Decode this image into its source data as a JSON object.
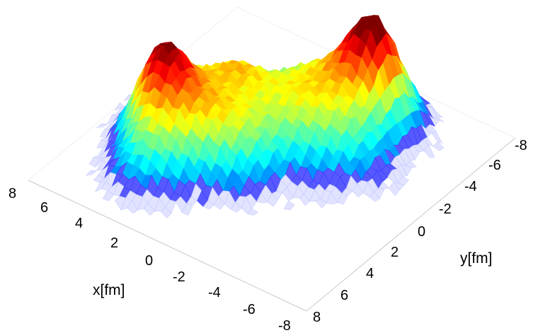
{
  "chart_data": {
    "type": "surface3d",
    "title": "",
    "xlabel": "x[fm]",
    "ylabel": "y[fm]",
    "zlabel": "",
    "x_ticks": [
      "8",
      "6",
      "4",
      "2",
      "0",
      "-2",
      "-4",
      "-6",
      "-8"
    ],
    "y_ticks": [
      "-8",
      "-6",
      "-4",
      "-2",
      "0",
      "2",
      "4",
      "6",
      "8"
    ],
    "xlim": [
      -8,
      8
    ],
    "ylim": [
      -8,
      8
    ],
    "colormap": "jet",
    "colors": {
      "low": "#0000ff",
      "mid": "#00ffff",
      "high": "#ff0000",
      "edge_fade": "#e6e6ff"
    },
    "hotspots": [
      {
        "x": -2.5,
        "y": -4.5,
        "amplitude": 1.0,
        "sigma": 1.3
      },
      {
        "x": 2.5,
        "y": -0.5,
        "amplitude": 0.55,
        "sigma": 1.4
      },
      {
        "x": 4.5,
        "y": 2.5,
        "amplitude": 0.8,
        "sigma": 1.2
      },
      {
        "x": -1.0,
        "y": -1.0,
        "amplitude": 0.45,
        "sigma": 1.6
      },
      {
        "x": 2.0,
        "y": 3.0,
        "amplitude": 0.45,
        "sigma": 1.5
      },
      {
        "x": -3.5,
        "y": -1.5,
        "amplitude": 0.3,
        "sigma": 1.5
      },
      {
        "x": 0.5,
        "y": -3.5,
        "amplitude": 0.35,
        "sigma": 1.4
      },
      {
        "x": 5.5,
        "y": 0.0,
        "amplitude": 0.3,
        "sigma": 1.3
      },
      {
        "x": 3.5,
        "y": 5.0,
        "amplitude": 0.3,
        "sigma": 1.3
      },
      {
        "x": 0.0,
        "y": 2.0,
        "amplitude": 0.3,
        "sigma": 1.4
      }
    ]
  }
}
